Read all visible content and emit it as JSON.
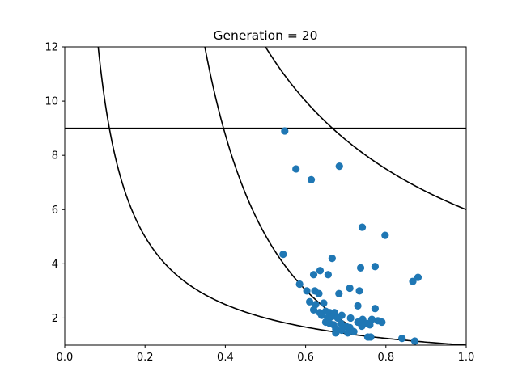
{
  "chart_data": {
    "type": "scatter",
    "title": "Generation = 20",
    "xlabel": "",
    "ylabel": "",
    "xlim": [
      0.0,
      1.0
    ],
    "ylim": [
      1.0,
      12.0
    ],
    "x_ticks": [
      "0.0",
      "0.2",
      "0.4",
      "0.6",
      "0.8",
      "1.0"
    ],
    "y_ticks": [
      "2",
      "4",
      "6",
      "8",
      "10",
      "12"
    ],
    "grid": false,
    "colors": {
      "points": "#1f77b4",
      "lines": "#000000"
    },
    "reference_lines": [
      {
        "kind": "horizontal",
        "y": 9.0
      },
      {
        "kind": "curve",
        "formula": "y = 1/x",
        "x_range": [
          0.083,
          1.0
        ]
      },
      {
        "kind": "curve",
        "formula": "y = 1.65/x^2 - 1.55",
        "x_range": [
          0.344,
          0.701
        ]
      },
      {
        "kind": "curve",
        "formula": "y = 6/x",
        "x_range": [
          0.5,
          1.0
        ]
      }
    ],
    "points": [
      [
        0.548,
        8.9
      ],
      [
        0.576,
        7.5
      ],
      [
        0.614,
        7.1
      ],
      [
        0.684,
        7.6
      ],
      [
        0.741,
        5.35
      ],
      [
        0.798,
        5.05
      ],
      [
        0.544,
        4.35
      ],
      [
        0.666,
        4.2
      ],
      [
        0.737,
        3.85
      ],
      [
        0.773,
        3.9
      ],
      [
        0.867,
        3.35
      ],
      [
        0.88,
        3.5
      ],
      [
        0.636,
        3.75
      ],
      [
        0.62,
        3.6
      ],
      [
        0.656,
        3.6
      ],
      [
        0.585,
        3.25
      ],
      [
        0.603,
        3.0
      ],
      [
        0.623,
        3.0
      ],
      [
        0.633,
        2.9
      ],
      [
        0.71,
        3.1
      ],
      [
        0.734,
        3.0
      ],
      [
        0.683,
        2.9
      ],
      [
        0.61,
        2.6
      ],
      [
        0.625,
        2.5
      ],
      [
        0.645,
        2.55
      ],
      [
        0.62,
        2.3
      ],
      [
        0.635,
        2.2
      ],
      [
        0.65,
        2.25
      ],
      [
        0.66,
        2.2
      ],
      [
        0.672,
        2.2
      ],
      [
        0.64,
        2.1
      ],
      [
        0.655,
        2.0
      ],
      [
        0.665,
        2.05
      ],
      [
        0.68,
        2.0
      ],
      [
        0.69,
        2.1
      ],
      [
        0.65,
        1.85
      ],
      [
        0.66,
        1.8
      ],
      [
        0.67,
        1.75
      ],
      [
        0.688,
        1.8
      ],
      [
        0.7,
        1.7
      ],
      [
        0.675,
        1.6
      ],
      [
        0.69,
        1.55
      ],
      [
        0.705,
        1.45
      ],
      [
        0.72,
        1.5
      ],
      [
        0.73,
        2.45
      ],
      [
        0.773,
        2.35
      ],
      [
        0.712,
        2.0
      ],
      [
        0.73,
        1.85
      ],
      [
        0.742,
        1.95
      ],
      [
        0.752,
        1.8
      ],
      [
        0.765,
        1.95
      ],
      [
        0.78,
        1.9
      ],
      [
        0.79,
        1.85
      ],
      [
        0.74,
        1.7
      ],
      [
        0.76,
        1.75
      ],
      [
        0.755,
        1.3
      ],
      [
        0.762,
        1.3
      ],
      [
        0.84,
        1.25
      ],
      [
        0.872,
        1.15
      ],
      [
        0.675,
        1.45
      ],
      [
        0.71,
        1.65
      ]
    ]
  }
}
